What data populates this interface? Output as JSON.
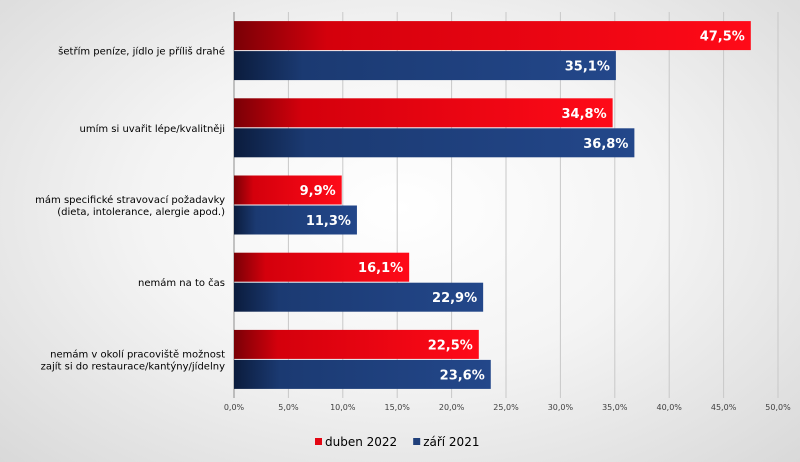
{
  "chart_data": {
    "type": "bar",
    "orientation": "horizontal",
    "categories": [
      [
        "šetřím peníze, jídlo je příliš drahé"
      ],
      [
        "umím si uvařit lépe/kvalitněji"
      ],
      [
        "mám specifické stravovací požadavky",
        "(dieta, intolerance, alergie apod.)"
      ],
      [
        "nemám na to čas"
      ],
      [
        "nemám v okolí pracoviště možnost",
        "zajít si do restaurace/kantýny/jídelny"
      ]
    ],
    "series": [
      {
        "name": "duben 2022",
        "color": "#e30613",
        "values": [
          47.5,
          34.8,
          9.9,
          16.1,
          22.5
        ],
        "labels": [
          "47,5%",
          "34,8%",
          "9,9%",
          "16,1%",
          "22,5%"
        ]
      },
      {
        "name": "září 2021",
        "color": "#1f3f7a",
        "values": [
          35.1,
          36.8,
          11.3,
          22.9,
          23.6
        ],
        "labels": [
          "35,1%",
          "36,8%",
          "11,3%",
          "22,9%",
          "23,6%"
        ]
      }
    ],
    "xlim": [
      0,
      50
    ],
    "xticks": [
      0,
      5,
      10,
      15,
      20,
      25,
      30,
      35,
      40,
      45,
      50
    ],
    "xtick_labels": [
      "0,0%",
      "5,0%",
      "10,0%",
      "15,0%",
      "20,0%",
      "25,0%",
      "30,0%",
      "35,0%",
      "40,0%",
      "45,0%",
      "50,0%"
    ],
    "grid": "vertical",
    "legend": "bottom-center"
  }
}
